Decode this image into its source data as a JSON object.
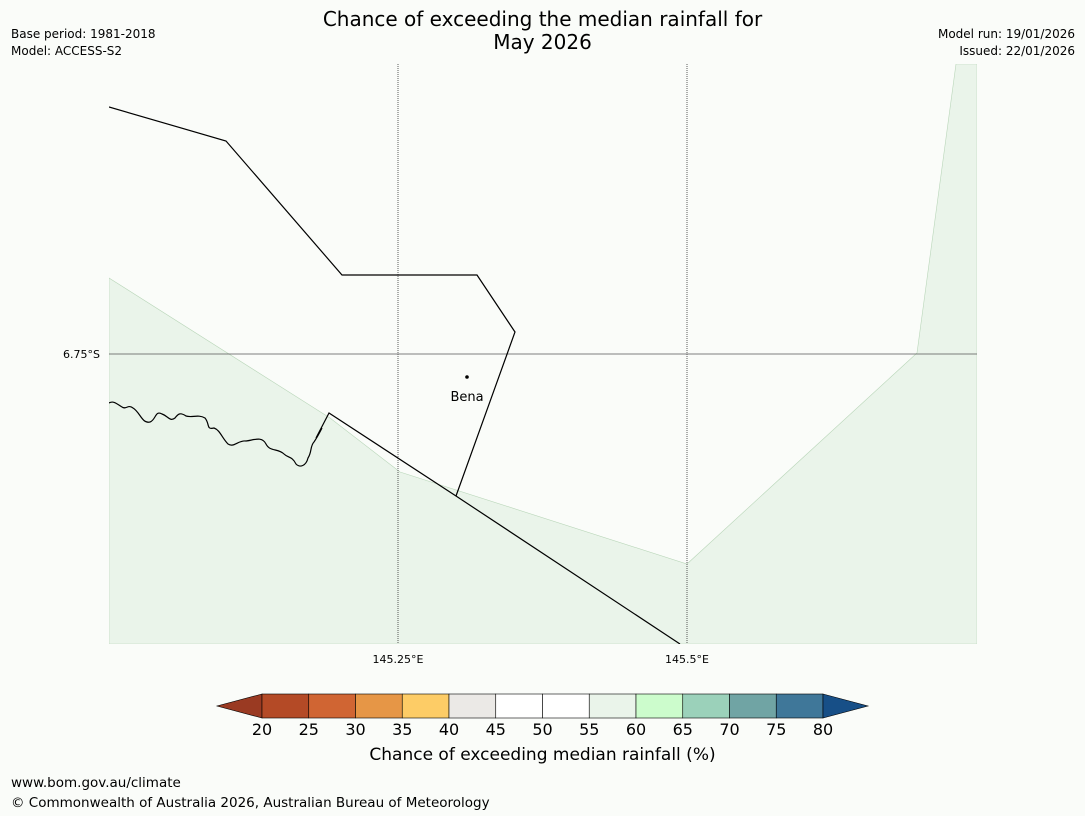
{
  "header": {
    "title_line1": "Chance of exceeding the median rainfall for",
    "title_line2": "May 2026",
    "base_period": "Base period: 1981-2018",
    "model": "Model: ACCESS-S2",
    "model_run": "Model run: 19/01/2026",
    "issued": "Issued: 22/01/2026"
  },
  "map": {
    "lat_label": "6.75°S",
    "lon_labels": [
      "145.25°E",
      "145.5°E"
    ],
    "place_name": "Bena",
    "colors": {
      "background": "#fafcf9",
      "region_55_60": "#eaf4ea",
      "boundary": "#000000",
      "grid": "#555555"
    }
  },
  "colorbar": {
    "ticks": [
      "20",
      "25",
      "30",
      "35",
      "40",
      "45",
      "50",
      "55",
      "60",
      "65",
      "70",
      "75",
      "80"
    ],
    "colors": [
      "#9a3a22",
      "#b44a26",
      "#d06533",
      "#e69646",
      "#fdcc66",
      "#ebe9e6",
      "#ffffff",
      "#ffffff",
      "#eaf4ea",
      "#ccfccc",
      "#9bd1ba",
      "#70a4a4",
      "#3f7799",
      "#174f87"
    ],
    "label": "Chance of exceeding median rainfall (%)"
  },
  "footer": {
    "url": "www.bom.gov.au/climate",
    "copyright": "© Commonwealth of Australia 2026, Australian Bureau of Meteorology"
  }
}
